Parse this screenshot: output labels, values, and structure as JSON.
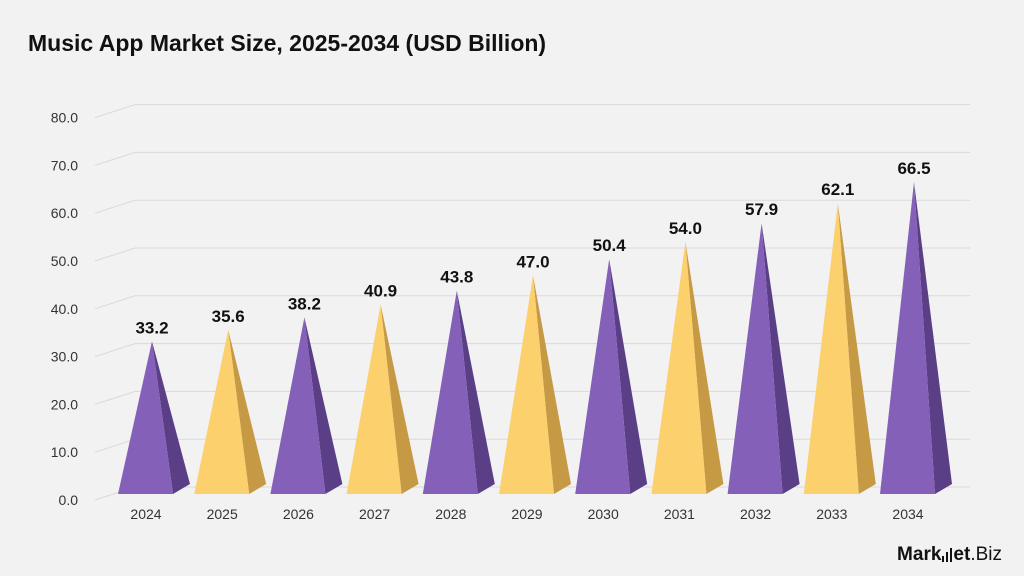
{
  "chart_data": {
    "type": "bar",
    "title": "Music App Market Size, 2025-2034 (USD Billion)",
    "categories": [
      "2024",
      "2025",
      "2026",
      "2027",
      "2028",
      "2029",
      "2030",
      "2031",
      "2032",
      "2033",
      "2034"
    ],
    "values": [
      33.2,
      35.6,
      38.2,
      40.9,
      43.8,
      47.0,
      50.4,
      54.0,
      57.9,
      62.1,
      66.5
    ],
    "value_labels": [
      "33.2",
      "35.6",
      "38.2",
      "40.9",
      "43.8",
      "47.0",
      "50.4",
      "54.0",
      "57.9",
      "62.1",
      "66.5"
    ],
    "ylim": [
      0,
      80
    ],
    "yticks": [
      "0.0",
      "10.0",
      "20.0",
      "30.0",
      "40.0",
      "50.0",
      "60.0",
      "70.0",
      "80.0"
    ],
    "xlabel": "",
    "ylabel": "",
    "grid": true,
    "legend": "none",
    "bar_shape": "3d-pyramid",
    "colors": {
      "purple": "#8460b8",
      "purple_shade": "#5b3f86",
      "yellow": "#fcd06c",
      "yellow_shade": "#c69a45",
      "grid": "#d9d9d9",
      "text": "#111111"
    },
    "color_pattern": [
      "purple",
      "yellow",
      "purple",
      "yellow",
      "purple",
      "yellow",
      "purple",
      "yellow",
      "purple",
      "yellow",
      "purple"
    ]
  },
  "brand": {
    "name_part1": "Mark",
    "name_part2": "et",
    "name_part3": ".Biz"
  }
}
